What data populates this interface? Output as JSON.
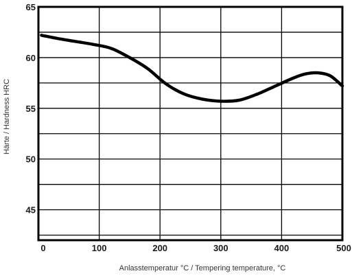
{
  "chart_data": {
    "type": "line",
    "title": "",
    "xlabel": "Anlasstemperatur °C / Tempering temperature, °C",
    "ylabel": "Härte / Hardness HRC",
    "xlim": [
      0,
      500
    ],
    "ylim": [
      42,
      65
    ],
    "x_ticks": [
      0,
      100,
      200,
      300,
      400,
      500
    ],
    "x_tick_labels": [
      "0",
      "100",
      "200",
      "300",
      "400",
      "500"
    ],
    "y_ticks": [
      45,
      50,
      55,
      60,
      65
    ],
    "y_tick_labels": [
      "45",
      "50",
      "55",
      "60",
      "65"
    ],
    "grid": true,
    "line_color": "#000000",
    "series": [
      {
        "x": [
          5,
          30,
          60,
          90,
          120,
          150,
          180,
          210,
          240,
          270,
          300,
          330,
          360,
          390,
          420,
          440,
          460,
          480,
          500
        ],
        "y": [
          62.2,
          61.9,
          61.6,
          61.3,
          60.9,
          60.0,
          58.9,
          57.4,
          56.4,
          55.9,
          55.7,
          55.8,
          56.4,
          57.2,
          58.0,
          58.4,
          58.5,
          58.2,
          57.2
        ]
      }
    ]
  }
}
